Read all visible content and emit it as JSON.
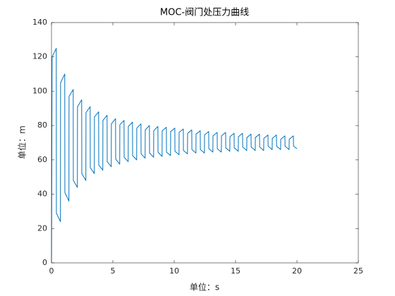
{
  "chart_data": {
    "type": "line",
    "title": "MOC-阀门处压力曲线",
    "x_label": "单位：s",
    "y_label": "单位：m",
    "color": "#0072bd",
    "xlim": [
      0,
      25
    ],
    "xticks": [
      0,
      5,
      10,
      15,
      20,
      25
    ],
    "ylim": [
      0,
      140
    ],
    "yticks": [
      0,
      20,
      40,
      60,
      80,
      100,
      120,
      140
    ],
    "box": true,
    "x": [
      0,
      0.05,
      0.39,
      0.4,
      0.73,
      0.74,
      1.08,
      1.09,
      1.42,
      1.43,
      1.77,
      1.78,
      2.11,
      2.12,
      2.46,
      2.47,
      2.8,
      2.81,
      3.15,
      3.16,
      3.49,
      3.5,
      3.84,
      3.85,
      4.18,
      4.19,
      4.53,
      4.54,
      4.87,
      4.88,
      5.22,
      5.23,
      5.56,
      5.57,
      5.91,
      5.92,
      6.25,
      6.26,
      6.6,
      6.61,
      6.94,
      6.95,
      7.29,
      7.3,
      7.63,
      7.64,
      7.98,
      7.99,
      8.32,
      8.33,
      8.67,
      8.68,
      9.01,
      9.02,
      9.36,
      9.37,
      9.7,
      9.71,
      10.05,
      10.06,
      10.39,
      10.4,
      10.74,
      10.75,
      11.08,
      11.09,
      11.43,
      11.44,
      11.77,
      11.78,
      12.12,
      12.13,
      12.46,
      12.47,
      12.81,
      12.82,
      13.15,
      13.16,
      13.5,
      13.51,
      13.84,
      13.85,
      14.19,
      14.2,
      14.53,
      14.54,
      14.88,
      14.89,
      15.22,
      15.23,
      15.57,
      15.58,
      15.91,
      15.92,
      16.26,
      16.27,
      16.6,
      16.61,
      16.95,
      16.96,
      17.29,
      17.3,
      17.64,
      17.65,
      17.98,
      17.99,
      18.33,
      18.34,
      18.67,
      18.68,
      19.02,
      19.03,
      19.36,
      19.37,
      19.71,
      19.72,
      20.0
    ],
    "values": [
      0,
      120,
      125,
      29,
      24,
      105,
      110,
      41,
      36,
      97,
      101,
      48,
      44,
      91,
      95,
      52,
      48,
      87.5,
      91,
      55.5,
      52,
      85,
      88,
      57,
      54,
      83,
      86,
      59,
      56,
      81,
      84,
      60.5,
      57.5,
      80.5,
      83,
      61.5,
      59,
      79.5,
      82,
      62.5,
      60,
      78.5,
      81,
      63.5,
      61,
      77.5,
      80,
      64,
      61.5,
      77,
      79.5,
      64.5,
      62,
      77,
      79,
      64.5,
      62.5,
      76.5,
      78.5,
      65,
      63,
      76,
      78,
      65.5,
      63.5,
      75.5,
      77.5,
      66,
      64,
      75,
      77,
      66,
      64,
      74.5,
      76.5,
      66.5,
      64.5,
      74,
      76,
      66.5,
      64.5,
      74,
      76,
      67,
      65,
      73.5,
      75.5,
      67,
      65,
      73.5,
      75.5,
      67.5,
      65.5,
      73,
      75,
      67.5,
      65.5,
      73,
      75,
      67.5,
      65.5,
      72.5,
      74.5,
      68,
      66,
      72.5,
      74.5,
      68,
      66,
      72,
      74,
      68,
      66,
      72,
      74,
      68,
      66.5
    ]
  }
}
